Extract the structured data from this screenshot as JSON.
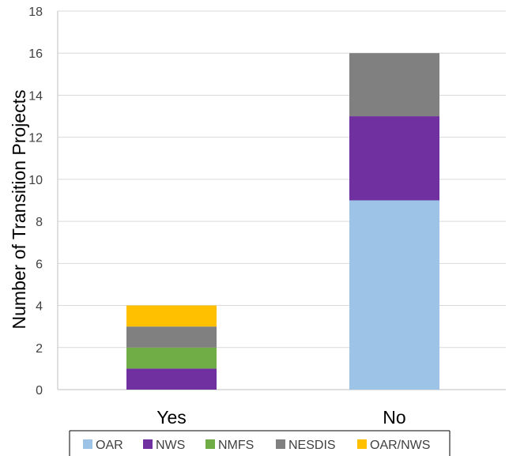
{
  "chart_data": {
    "type": "bar",
    "stacked": true,
    "categories": [
      "Yes",
      "No"
    ],
    "series": [
      {
        "name": "OAR",
        "values": [
          0,
          9
        ],
        "color": "#9DC3E6"
      },
      {
        "name": "NWS",
        "values": [
          1,
          4
        ],
        "color": "#7030A0"
      },
      {
        "name": "NMFS",
        "values": [
          1,
          0
        ],
        "color": "#70AD47"
      },
      {
        "name": "NESDIS",
        "values": [
          1,
          3
        ],
        "color": "#808080"
      },
      {
        "name": "OAR/NWS",
        "values": [
          1,
          0
        ],
        "color": "#FFC000"
      }
    ],
    "title": "",
    "xlabel": "",
    "ylabel": "Number of Transition Projects",
    "ylim": [
      0,
      18
    ],
    "yticks": [
      "0",
      "2",
      "4",
      "6",
      "8",
      "10",
      "12",
      "14",
      "16",
      "18"
    ],
    "grid": "horizontal",
    "legend_position": "bottom"
  }
}
